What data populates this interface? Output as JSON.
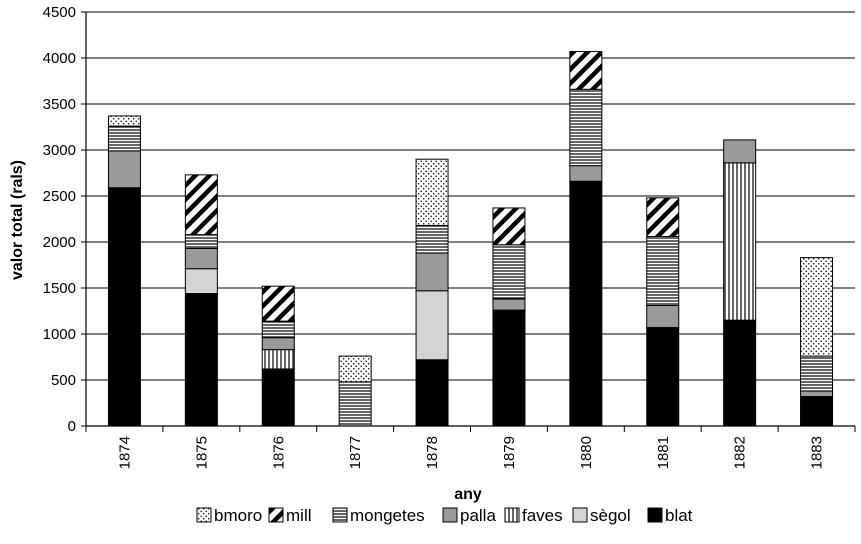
{
  "chart_data": {
    "type": "bar",
    "stacked": true,
    "xlabel": "any",
    "ylabel": "valor total (rals)",
    "ylim": [
      0,
      4500
    ],
    "yticks": [
      0,
      500,
      1000,
      1500,
      2000,
      2500,
      3000,
      3500,
      4000,
      4500
    ],
    "grid": true,
    "legend": "bottom",
    "categories": [
      "1874",
      "1875",
      "1876",
      "1877",
      "1878",
      "1879",
      "1880",
      "1881",
      "1882",
      "1883"
    ],
    "series": [
      {
        "name": "blat",
        "pattern": "solid-black",
        "values": [
          2590,
          1440,
          620,
          0,
          720,
          1260,
          2660,
          1070,
          1150,
          320
        ]
      },
      {
        "name": "sègol",
        "pattern": "light-gray",
        "values": [
          0,
          270,
          0,
          0,
          750,
          0,
          0,
          0,
          0,
          0
        ]
      },
      {
        "name": "faves",
        "pattern": "vertical-lines",
        "values": [
          0,
          0,
          210,
          0,
          0,
          0,
          0,
          0,
          1710,
          0
        ]
      },
      {
        "name": "palla",
        "pattern": "mid-gray",
        "values": [
          400,
          220,
          130,
          0,
          410,
          120,
          170,
          240,
          250,
          60
        ]
      },
      {
        "name": "mongetes",
        "pattern": "horizontal-lines",
        "values": [
          270,
          150,
          180,
          480,
          300,
          590,
          830,
          750,
          0,
          380
        ]
      },
      {
        "name": "mill",
        "pattern": "diagonal-stripes",
        "values": [
          0,
          650,
          380,
          0,
          0,
          400,
          410,
          420,
          0,
          0
        ]
      },
      {
        "name": "bmoro",
        "pattern": "dots",
        "values": [
          110,
          0,
          0,
          280,
          720,
          0,
          0,
          0,
          0,
          1070
        ]
      }
    ],
    "legend_order": [
      "bmoro",
      "mill",
      "mongetes",
      "palla",
      "faves",
      "sègol",
      "blat"
    ]
  }
}
